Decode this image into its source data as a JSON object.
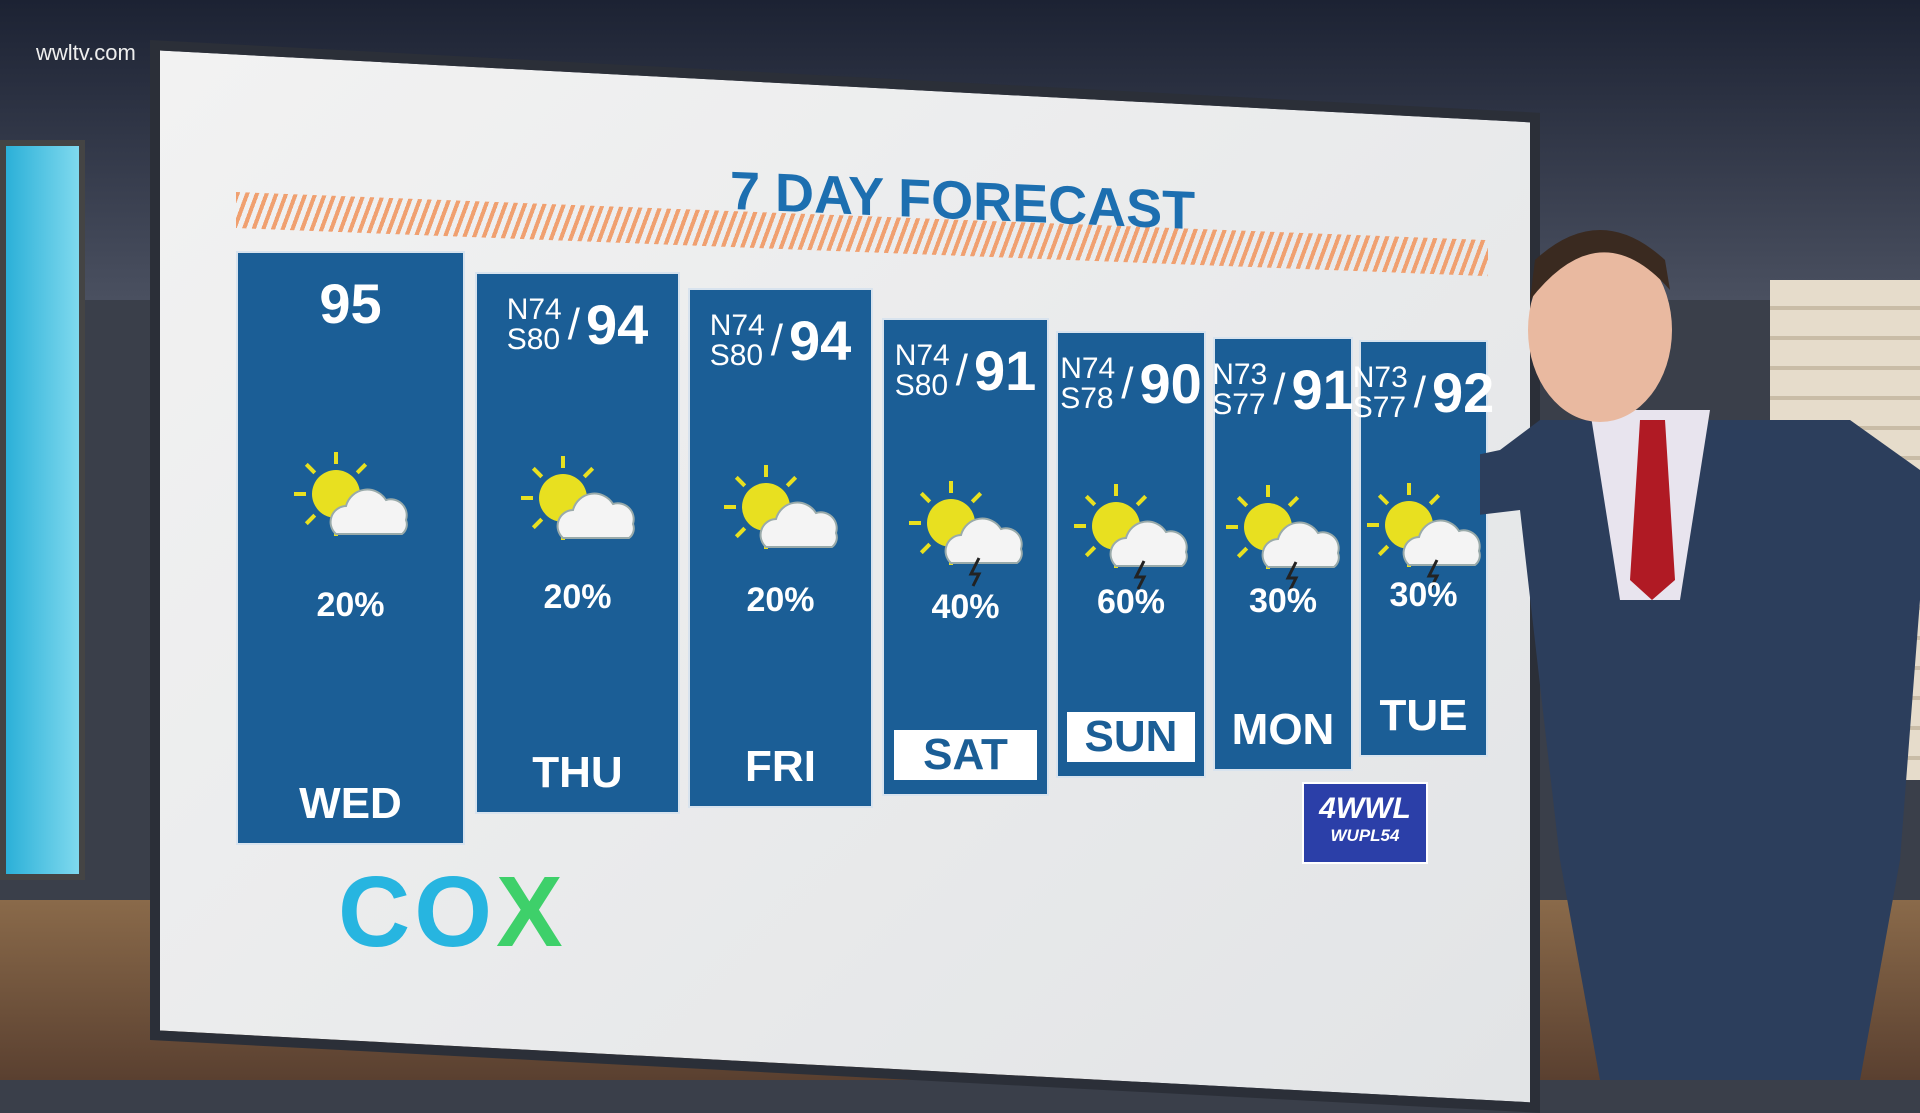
{
  "watermark": "wwltv.com",
  "title": "7 DAY FORECAST",
  "days": [
    {
      "day": "WED",
      "high": "95",
      "north": "",
      "south": "",
      "rain": "20%",
      "icon": "partly-cloudy-icon",
      "highlight": false
    },
    {
      "day": "THU",
      "high": "94",
      "north": "N74",
      "south": "S80",
      "rain": "20%",
      "icon": "partly-cloudy-icon",
      "highlight": false
    },
    {
      "day": "FRI",
      "high": "94",
      "north": "N74",
      "south": "S80",
      "rain": "20%",
      "icon": "partly-cloudy-icon",
      "highlight": false
    },
    {
      "day": "SAT",
      "high": "91",
      "north": "N74",
      "south": "S80",
      "rain": "40%",
      "icon": "sun-thunderstorm-icon",
      "highlight": true
    },
    {
      "day": "SUN",
      "high": "90",
      "north": "N74",
      "south": "S78",
      "rain": "60%",
      "icon": "sun-thunderstorm-icon",
      "highlight": true
    },
    {
      "day": "MON",
      "high": "91",
      "north": "N73",
      "south": "S77",
      "rain": "30%",
      "icon": "sun-thunderstorm-icon",
      "highlight": false
    },
    {
      "day": "TUE",
      "high": "92",
      "north": "N73",
      "south": "S77",
      "rain": "30%",
      "icon": "sun-thunderstorm-icon",
      "highlight": false
    }
  ],
  "sponsor": {
    "co": "CO",
    "x": "X"
  },
  "station": {
    "main": "4WWL",
    "sub": "WUPL54"
  },
  "colors": {
    "panel": "#1b5e96",
    "title": "#1d6fb0",
    "stripe": "#f0a070",
    "cox_blue": "#27b5e0",
    "cox_green": "#3ed06a"
  }
}
